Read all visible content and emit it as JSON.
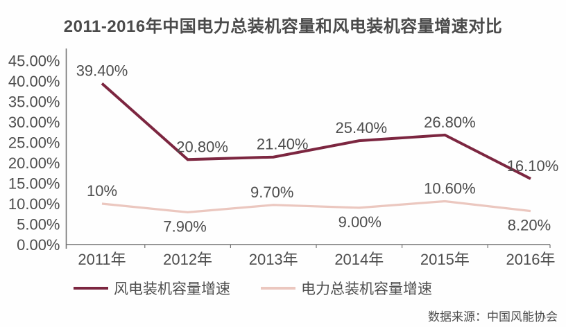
{
  "page": {
    "background": "#fefefe"
  },
  "chart_data": {
    "type": "line",
    "title": "2011-2016年中国电力总装机容量和风电装机容量增速对比",
    "source_note": "数据来源：中国风能协会",
    "categories": [
      "2011年",
      "2012年",
      "2013年",
      "2014年",
      "2015年",
      "2016年"
    ],
    "y_axis_ticks": [
      "0.00%",
      "5.00%",
      "10.00%",
      "15.00%",
      "20.00%",
      "25.00%",
      "30.00%",
      "35.00%",
      "40.00%",
      "45.00%"
    ],
    "ylim": [
      0,
      45
    ],
    "y_step": 5,
    "grid": false,
    "legend_position": "bottom",
    "title_color": "#4a4a4a",
    "text_color": "#4d4d4d",
    "axis_color": "#737373",
    "series": [
      {
        "name": "风电装机容量增速",
        "color": "#7C2640",
        "values": [
          39.4,
          20.8,
          21.4,
          25.4,
          26.8,
          16.1
        ],
        "point_labels": [
          "39.40%",
          "20.80%",
          "21.40%",
          "25.40%",
          "26.80%",
          "16.10%"
        ],
        "label_side": [
          "above",
          "above",
          "above",
          "above",
          "above",
          "above"
        ]
      },
      {
        "name": "电力总装机容量增速",
        "color": "#EBC7BF",
        "values": [
          10,
          7.9,
          9.7,
          9.0,
          10.6,
          8.2
        ],
        "point_labels": [
          "10%",
          "7.90%",
          "9.70%",
          "9.00%",
          "10.60%",
          "8.20%"
        ],
        "label_side": [
          "above",
          "below",
          "above",
          "below",
          "above",
          "below"
        ]
      }
    ]
  }
}
